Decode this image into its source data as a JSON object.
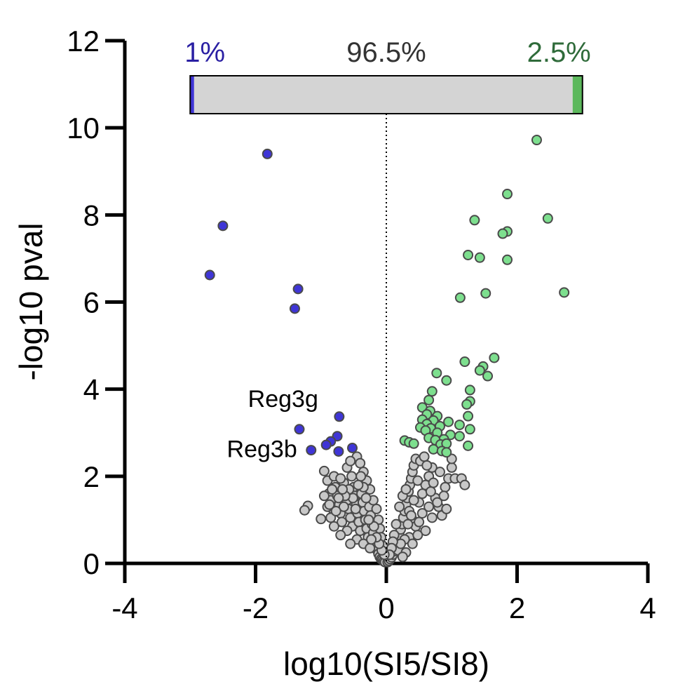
{
  "chart_data": {
    "type": "scatter",
    "xlabel": "log10(SI5/SI8)",
    "ylabel": "-log10 pval",
    "xlim": [
      -4,
      4
    ],
    "ylim": [
      0,
      12
    ],
    "xticks": [
      "-4",
      "-2",
      "0",
      "2",
      "4"
    ],
    "yticks": [
      "0",
      "2",
      "4",
      "6",
      "8",
      "10",
      "12"
    ],
    "grid": false,
    "reference_line": {
      "x": 0,
      "style": "dotted"
    },
    "proportion_bar": {
      "segments": [
        {
          "label": "1%",
          "value": 1,
          "color": "#3f35d6",
          "label_color": "#2a1fa3"
        },
        {
          "label": "96.5%",
          "value": 96.5,
          "color": "#d4d4d4",
          "label_color": "#333333"
        },
        {
          "label": "2.5%",
          "value": 2.5,
          "color": "#5cb85c",
          "label_color": "#2f6b3a"
        }
      ]
    },
    "annotations": [
      {
        "text": "Reg3g",
        "x": -0.72,
        "y": 3.37
      },
      {
        "text": "Reg3b",
        "x": -1.15,
        "y": 2.6
      }
    ],
    "series": [
      {
        "color": "#3f35d6",
        "points": [
          [
            -1.82,
            9.4
          ],
          [
            -2.5,
            7.75
          ],
          [
            -2.7,
            6.62
          ],
          [
            -1.35,
            6.3
          ],
          [
            -1.4,
            5.85
          ],
          [
            -0.72,
            3.37
          ],
          [
            -1.33,
            3.08
          ],
          [
            -0.75,
            2.92
          ],
          [
            -0.85,
            2.8
          ],
          [
            -0.92,
            2.72
          ],
          [
            -0.52,
            2.65
          ],
          [
            -1.15,
            2.6
          ],
          [
            -0.73,
            2.57
          ]
        ]
      },
      {
        "color": "#7ddf8e",
        "points": [
          [
            2.3,
            9.72
          ],
          [
            1.85,
            8.48
          ],
          [
            2.47,
            7.92
          ],
          [
            1.35,
            7.88
          ],
          [
            1.85,
            7.62
          ],
          [
            1.78,
            7.57
          ],
          [
            1.25,
            7.08
          ],
          [
            1.43,
            7.02
          ],
          [
            1.85,
            6.97
          ],
          [
            2.72,
            6.22
          ],
          [
            1.52,
            6.2
          ],
          [
            1.13,
            6.1
          ],
          [
            1.65,
            4.72
          ],
          [
            1.2,
            4.63
          ],
          [
            1.48,
            4.52
          ],
          [
            1.43,
            4.43
          ],
          [
            0.77,
            4.37
          ],
          [
            1.55,
            4.3
          ],
          [
            0.92,
            4.2
          ],
          [
            1.28,
            3.98
          ],
          [
            0.7,
            3.95
          ],
          [
            0.65,
            3.75
          ],
          [
            1.28,
            3.72
          ],
          [
            1.23,
            3.65
          ],
          [
            0.55,
            3.58
          ],
          [
            0.67,
            3.5
          ],
          [
            0.62,
            3.42
          ],
          [
            0.78,
            3.38
          ],
          [
            1.25,
            3.38
          ],
          [
            0.55,
            3.3
          ],
          [
            0.72,
            3.28
          ],
          [
            0.95,
            3.25
          ],
          [
            0.62,
            3.2
          ],
          [
            0.82,
            3.15
          ],
          [
            1.12,
            3.18
          ],
          [
            0.52,
            3.12
          ],
          [
            0.68,
            3.1
          ],
          [
            1.28,
            3.08
          ],
          [
            0.6,
            3.05
          ],
          [
            0.78,
            3.0
          ],
          [
            0.98,
            2.95
          ],
          [
            1.12,
            2.92
          ],
          [
            0.65,
            2.88
          ],
          [
            0.88,
            2.85
          ],
          [
            0.75,
            2.83
          ],
          [
            0.28,
            2.82
          ],
          [
            0.35,
            2.78
          ],
          [
            0.42,
            2.75
          ],
          [
            0.83,
            2.73
          ],
          [
            0.92,
            2.75
          ],
          [
            1.25,
            2.7
          ],
          [
            0.72,
            2.62
          ],
          [
            0.85,
            2.58
          ],
          [
            0.92,
            2.55
          ]
        ]
      },
      {
        "color": "#c8c8c8",
        "points": [
          [
            -1.2,
            1.32
          ],
          [
            -1.25,
            1.22
          ],
          [
            -1.0,
            1.02
          ],
          [
            -0.95,
            2.12
          ],
          [
            -0.9,
            1.9
          ],
          [
            -0.88,
            1.6
          ],
          [
            -0.85,
            1.45
          ],
          [
            -0.82,
            1.25
          ],
          [
            -0.8,
            2.0
          ],
          [
            -0.78,
            1.75
          ],
          [
            -0.75,
            1.55
          ],
          [
            -0.72,
            1.35
          ],
          [
            -0.7,
            1.15
          ],
          [
            -0.68,
            0.95
          ],
          [
            -0.65,
            1.85
          ],
          [
            -0.62,
            1.65
          ],
          [
            -0.6,
            1.45
          ],
          [
            -0.58,
            1.25
          ],
          [
            -0.55,
            1.05
          ],
          [
            -0.52,
            0.85
          ],
          [
            -0.5,
            1.75
          ],
          [
            -0.48,
            1.55
          ],
          [
            -0.46,
            1.35
          ],
          [
            -0.44,
            1.15
          ],
          [
            -0.42,
            0.95
          ],
          [
            -0.4,
            0.75
          ],
          [
            -0.38,
            1.6
          ],
          [
            -0.36,
            1.4
          ],
          [
            -0.34,
            1.2
          ],
          [
            -0.32,
            1.0
          ],
          [
            -0.3,
            0.8
          ],
          [
            -0.28,
            0.6
          ],
          [
            -0.26,
            1.3
          ],
          [
            -0.24,
            1.1
          ],
          [
            -0.22,
            0.9
          ],
          [
            -0.2,
            0.7
          ],
          [
            -0.18,
            0.5
          ],
          [
            -0.16,
            0.4
          ],
          [
            -0.14,
            0.3
          ],
          [
            -0.12,
            0.22
          ],
          [
            -0.1,
            0.15
          ],
          [
            -0.08,
            0.1
          ],
          [
            -0.06,
            0.08
          ],
          [
            -0.04,
            0.05
          ],
          [
            -0.02,
            0.03
          ],
          [
            -0.45,
            2.45
          ],
          [
            -0.4,
            2.3
          ],
          [
            -0.35,
            2.1
          ],
          [
            -0.3,
            1.9
          ],
          [
            -0.25,
            1.7
          ],
          [
            -0.6,
            2.2
          ],
          [
            -0.7,
            1.95
          ],
          [
            -0.55,
            2.35
          ],
          [
            -0.65,
            1.3
          ],
          [
            -0.85,
            1.05
          ],
          [
            -0.9,
            1.3
          ],
          [
            -0.95,
            1.55
          ],
          [
            -0.6,
            0.75
          ],
          [
            -0.45,
            0.55
          ],
          [
            -0.35,
            0.45
          ],
          [
            -0.25,
            0.35
          ],
          [
            -0.2,
            1.45
          ],
          [
            -0.15,
            1.25
          ],
          [
            -0.12,
            1.0
          ],
          [
            -0.1,
            0.8
          ],
          [
            -0.08,
            0.6
          ],
          [
            -0.05,
            0.4
          ],
          [
            -0.7,
            0.65
          ],
          [
            -0.8,
            0.85
          ],
          [
            -0.55,
            0.45
          ],
          [
            0.02,
            0.03
          ],
          [
            0.04,
            0.06
          ],
          [
            0.06,
            0.1
          ],
          [
            0.08,
            0.14
          ],
          [
            0.1,
            0.2
          ],
          [
            0.12,
            0.28
          ],
          [
            0.14,
            0.36
          ],
          [
            0.16,
            0.45
          ],
          [
            0.18,
            0.55
          ],
          [
            0.2,
            0.65
          ],
          [
            0.22,
            0.78
          ],
          [
            0.24,
            0.9
          ],
          [
            0.26,
            1.05
          ],
          [
            0.28,
            1.2
          ],
          [
            0.3,
            1.35
          ],
          [
            0.32,
            1.5
          ],
          [
            0.34,
            1.65
          ],
          [
            0.36,
            1.8
          ],
          [
            0.38,
            1.95
          ],
          [
            0.4,
            2.1
          ],
          [
            0.42,
            2.25
          ],
          [
            0.45,
            2.4
          ],
          [
            0.25,
            1.55
          ],
          [
            0.3,
            1.7
          ],
          [
            0.35,
            1.2
          ],
          [
            0.4,
            1.0
          ],
          [
            0.45,
            0.85
          ],
          [
            0.5,
            1.4
          ],
          [
            0.55,
            1.6
          ],
          [
            0.6,
            1.8
          ],
          [
            0.65,
            2.0
          ],
          [
            0.7,
            2.2
          ],
          [
            0.75,
            1.5
          ],
          [
            0.8,
            1.3
          ],
          [
            0.85,
            1.1
          ],
          [
            0.9,
            1.75
          ],
          [
            0.95,
            1.95
          ],
          [
            1.0,
            2.2
          ],
          [
            0.5,
            0.95
          ],
          [
            0.55,
            1.15
          ],
          [
            0.6,
            0.75
          ],
          [
            0.65,
            1.3
          ],
          [
            0.7,
            1.05
          ],
          [
            0.2,
            1.3
          ],
          [
            0.15,
            0.9
          ],
          [
            0.18,
            0.3
          ],
          [
            0.35,
            0.6
          ],
          [
            0.4,
            0.45
          ],
          [
            0.3,
            0.25
          ],
          [
            0.25,
            0.15
          ],
          [
            0.48,
            1.9
          ],
          [
            0.52,
            2.35
          ],
          [
            0.58,
            2.45
          ],
          [
            0.62,
            2.25
          ],
          [
            0.68,
            1.65
          ],
          [
            0.72,
            1.85
          ],
          [
            0.78,
            1.4
          ],
          [
            0.82,
            2.1
          ],
          [
            0.88,
            1.55
          ],
          [
            0.92,
            1.25
          ],
          [
            1.05,
            1.95
          ],
          [
            1.15,
            1.95
          ],
          [
            1.2,
            1.8
          ],
          [
            1.0,
            2.4
          ],
          [
            0.48,
            0.65
          ],
          [
            0.42,
            1.45
          ],
          [
            0.38,
            1.1
          ],
          [
            0.33,
            0.9
          ],
          [
            0.28,
            0.55
          ],
          [
            0.22,
            0.45
          ],
          [
            0.12,
            0.65
          ],
          [
            0.1,
            0.5
          ],
          [
            0.08,
            0.35
          ],
          [
            0.05,
            0.2
          ],
          [
            -0.03,
            0.2
          ],
          [
            -0.07,
            0.3
          ],
          [
            -0.11,
            0.45
          ],
          [
            -0.15,
            0.6
          ],
          [
            -0.19,
            0.85
          ],
          [
            -0.23,
            0.55
          ],
          [
            -0.27,
            1.0
          ],
          [
            -0.31,
            1.5
          ],
          [
            -0.35,
            1.75
          ],
          [
            -0.39,
            2.0
          ],
          [
            -0.43,
            1.8
          ],
          [
            -0.47,
            1.25
          ],
          [
            -0.51,
            1.5
          ],
          [
            -0.53,
            2.0
          ],
          [
            -0.57,
            1.7
          ],
          [
            -0.63,
            1.55
          ],
          [
            -0.67,
            1.7
          ],
          [
            -0.73,
            1.5
          ],
          [
            -0.77,
            1.2
          ],
          [
            -0.83,
            1.7
          ],
          [
            -0.87,
            1.35
          ]
        ]
      }
    ]
  }
}
